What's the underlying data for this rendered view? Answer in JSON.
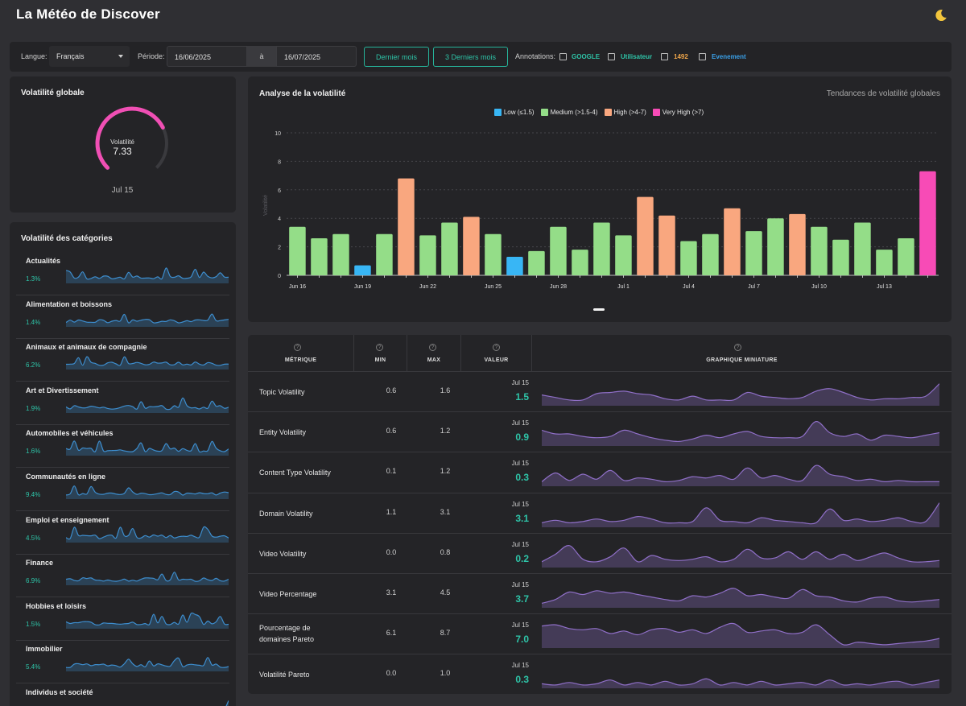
{
  "app": {
    "title": "La Météo de Discover",
    "theme_icon": "moon-icon"
  },
  "filters": {
    "language_label": "Langue:",
    "language_value": "Français",
    "period_label": "Période:",
    "date_from": "16/06/2025",
    "date_sep": "à",
    "date_to": "16/07/2025",
    "btn_last_month": "Dernier mois",
    "btn_last_3_months": "3 Derniers mois",
    "annotations_label": "Annotations:",
    "annotations": [
      {
        "label": "GOOGLE",
        "color": "#2ec4a8"
      },
      {
        "label": "Utilisateur",
        "color": "#2ec4a8"
      },
      {
        "label": "1492",
        "color": "#f0a64a"
      },
      {
        "label": "Evenement",
        "color": "#3aa0e8"
      }
    ]
  },
  "global_volatility": {
    "title": "Volatilité globale",
    "gauge_label": "Volatilité",
    "value": "7.33",
    "gauge_fraction": 0.733,
    "date": "Jul 15",
    "color": "#f04fb4"
  },
  "categories": {
    "title": "Volatilité des catégories",
    "items": [
      {
        "name": "Actualités",
        "pct": "1.3%"
      },
      {
        "name": "Alimentation et boissons",
        "pct": "1.4%"
      },
      {
        "name": "Animaux et animaux de compagnie",
        "pct": "6.2%"
      },
      {
        "name": "Art et Divertissement",
        "pct": "1.9%"
      },
      {
        "name": "Automobiles et véhicules",
        "pct": "1.6%"
      },
      {
        "name": "Communautés en ligne",
        "pct": "9.4%"
      },
      {
        "name": "Emploi et enseignement",
        "pct": "4.5%"
      },
      {
        "name": "Finance",
        "pct": "6.9%"
      },
      {
        "name": "Hobbies et loisirs",
        "pct": "1.5%"
      },
      {
        "name": "Immobilier",
        "pct": "5.4%"
      },
      {
        "name": "Individus et société",
        "pct": ""
      }
    ]
  },
  "chart_data": {
    "type": "bar",
    "title": "Analyse de la volatilité",
    "subtitle": "Tendances de volatilité globales",
    "ylabel": "Volatilité",
    "ylim": [
      0,
      10
    ],
    "yticks": [
      "0",
      "2",
      "4",
      "6",
      "8",
      "10"
    ],
    "xtick_labels": [
      {
        "index": 0,
        "label": "Jun 16"
      },
      {
        "index": 3,
        "label": "Jun 19"
      },
      {
        "index": 6,
        "label": "Jun 22"
      },
      {
        "index": 9,
        "label": "Jun 25"
      },
      {
        "index": 12,
        "label": "Jun 28"
      },
      {
        "index": 15,
        "label": "Jul 1"
      },
      {
        "index": 18,
        "label": "Jul 4"
      },
      {
        "index": 21,
        "label": "Jul 7"
      },
      {
        "index": 24,
        "label": "Jul 10"
      },
      {
        "index": 27,
        "label": "Jul 13"
      }
    ],
    "legend": [
      {
        "label": "Low (≤1.5)",
        "color": "#38b6f5"
      },
      {
        "label": "Medium (>1.5-4)",
        "color": "#94dd88"
      },
      {
        "label": "High (>4-7)",
        "color": "#f9a77f"
      },
      {
        "label": "Very High (>7)",
        "color": "#f74bb6"
      }
    ],
    "values": [
      3.4,
      2.6,
      2.9,
      0.7,
      2.9,
      6.8,
      2.8,
      3.7,
      4.1,
      2.9,
      1.3,
      1.7,
      3.4,
      1.8,
      3.7,
      2.8,
      5.5,
      4.2,
      2.4,
      2.9,
      4.7,
      3.1,
      4.0,
      4.3,
      3.4,
      2.5,
      3.7,
      1.8,
      2.6,
      7.3
    ]
  },
  "metrics": {
    "headers": {
      "metric": "MÉTRIQUE",
      "min": "MIN",
      "max": "MAX",
      "value": "VALEUR",
      "sparkline": "GRAPHIQUE MINIATURE"
    },
    "rows": [
      {
        "name": "Topic Volatility",
        "min": "0.6",
        "max": "1.6",
        "date": "Jul 15",
        "value": "1.5",
        "spark": [
          0.4,
          0.3,
          0.2,
          0.2,
          0.45,
          0.5,
          0.55,
          0.45,
          0.4,
          0.25,
          0.2,
          0.35,
          0.2,
          0.2,
          0.2,
          0.5,
          0.35,
          0.3,
          0.25,
          0.3,
          0.55,
          0.65,
          0.5,
          0.3,
          0.2,
          0.25,
          0.25,
          0.3,
          0.35,
          0.85
        ]
      },
      {
        "name": "Entity Volatility",
        "min": "0.6",
        "max": "1.2",
        "date": "Jul 15",
        "value": "0.9",
        "spark": [
          0.6,
          0.45,
          0.45,
          0.35,
          0.3,
          0.35,
          0.6,
          0.45,
          0.3,
          0.2,
          0.15,
          0.25,
          0.4,
          0.3,
          0.45,
          0.55,
          0.35,
          0.3,
          0.3,
          0.35,
          0.95,
          0.5,
          0.35,
          0.45,
          0.2,
          0.4,
          0.35,
          0.3,
          0.4,
          0.5
        ]
      },
      {
        "name": "Content Type Volatility",
        "min": "0.1",
        "max": "1.2",
        "date": "Jul 15",
        "value": "0.3",
        "spark": [
          0.15,
          0.5,
          0.2,
          0.45,
          0.25,
          0.6,
          0.2,
          0.3,
          0.25,
          0.15,
          0.2,
          0.35,
          0.3,
          0.4,
          0.25,
          0.7,
          0.3,
          0.4,
          0.25,
          0.2,
          0.8,
          0.45,
          0.35,
          0.2,
          0.25,
          0.15,
          0.2,
          0.15,
          0.15,
          0.15
        ]
      },
      {
        "name": "Domain Volatility",
        "min": "1.1",
        "max": "3.1",
        "date": "Jul 15",
        "value": "3.1",
        "spark": [
          0.15,
          0.25,
          0.15,
          0.2,
          0.3,
          0.2,
          0.25,
          0.4,
          0.3,
          0.15,
          0.15,
          0.2,
          0.75,
          0.25,
          0.2,
          0.15,
          0.35,
          0.25,
          0.2,
          0.15,
          0.15,
          0.7,
          0.25,
          0.3,
          0.2,
          0.25,
          0.35,
          0.2,
          0.2,
          0.95
        ]
      },
      {
        "name": "Video Volatility",
        "min": "0.0",
        "max": "0.8",
        "date": "Jul 15",
        "value": "0.2",
        "spark": [
          0.2,
          0.5,
          0.85,
          0.3,
          0.2,
          0.4,
          0.75,
          0.2,
          0.45,
          0.3,
          0.25,
          0.3,
          0.4,
          0.2,
          0.3,
          0.7,
          0.35,
          0.35,
          0.6,
          0.3,
          0.6,
          0.3,
          0.5,
          0.25,
          0.4,
          0.55,
          0.35,
          0.2,
          0.2,
          0.25
        ]
      },
      {
        "name": "Video Percentage",
        "min": "3.1",
        "max": "4.5",
        "date": "Jul 15",
        "value": "3.7",
        "spark": [
          0.15,
          0.3,
          0.6,
          0.5,
          0.65,
          0.55,
          0.6,
          0.5,
          0.4,
          0.3,
          0.25,
          0.45,
          0.4,
          0.55,
          0.75,
          0.45,
          0.5,
          0.4,
          0.35,
          0.7,
          0.45,
          0.4,
          0.25,
          0.2,
          0.35,
          0.4,
          0.25,
          0.2,
          0.25,
          0.3
        ]
      },
      {
        "name": "Pourcentage de domaines Pareto",
        "min": "6.1",
        "max": "8.7",
        "date": "Jul 15",
        "value": "7.0",
        "spark": [
          0.85,
          0.9,
          0.75,
          0.7,
          0.75,
          0.55,
          0.65,
          0.5,
          0.7,
          0.75,
          0.6,
          0.7,
          0.55,
          0.8,
          0.95,
          0.6,
          0.65,
          0.7,
          0.55,
          0.6,
          0.9,
          0.5,
          0.1,
          0.2,
          0.15,
          0.1,
          0.15,
          0.2,
          0.25,
          0.35
        ]
      },
      {
        "name": "Volatilité Pareto",
        "min": "0.0",
        "max": "1.0",
        "date": "Jul 15",
        "value": "0.3",
        "spark": [
          0.15,
          0.1,
          0.2,
          0.1,
          0.15,
          0.3,
          0.1,
          0.2,
          0.1,
          0.25,
          0.1,
          0.15,
          0.35,
          0.1,
          0.2,
          0.1,
          0.25,
          0.1,
          0.15,
          0.2,
          0.1,
          0.3,
          0.1,
          0.15,
          0.1,
          0.2,
          0.25,
          0.1,
          0.2,
          0.3
        ]
      }
    ]
  },
  "colors": {
    "teal": "#2ec4a8",
    "spark_blue": "#3d8ecf",
    "spark_purple": "#8f6fc7"
  }
}
